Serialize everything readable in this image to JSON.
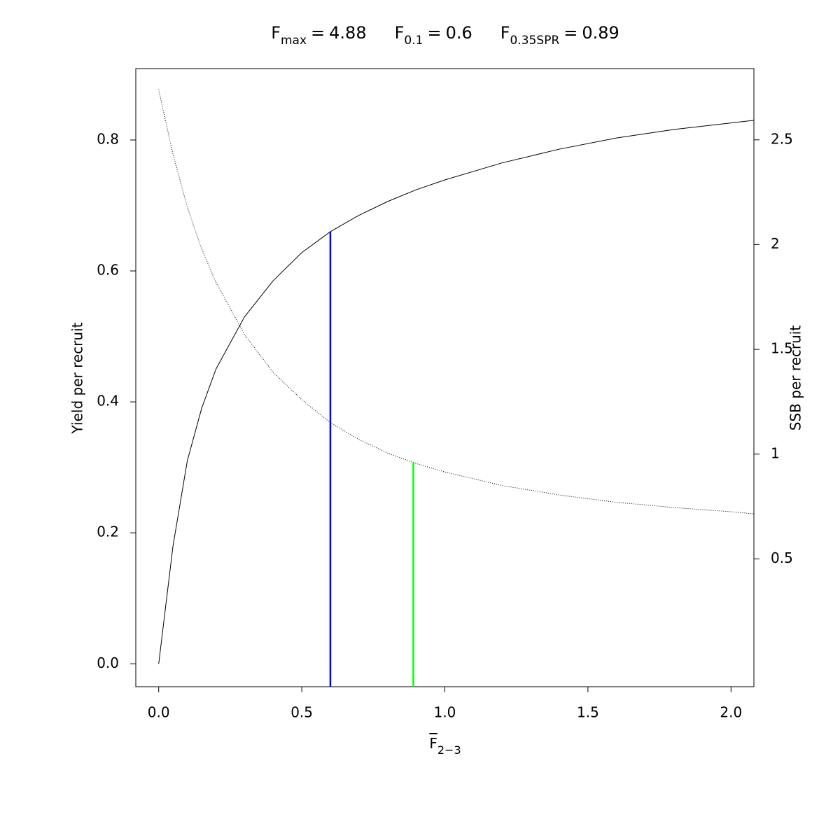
{
  "chart_data": {
    "type": "line",
    "title_parts": [
      {
        "name": "F",
        "sub": "max",
        "eq": "=",
        "value": 4.88
      },
      {
        "name": "F",
        "sub": "0.1",
        "eq": "=",
        "value": 0.6
      },
      {
        "name": "F",
        "sub": "0.35SPR",
        "eq": "=",
        "value": 0.89
      }
    ],
    "xlabel": {
      "name": "F",
      "sub": "2−3"
    },
    "ylabel": "Yield per recruit",
    "y2label": "SSB per recruit",
    "x": [
      0,
      0.05,
      0.1,
      0.15,
      0.2,
      0.3,
      0.4,
      0.5,
      0.6,
      0.7,
      0.8,
      0.9,
      1.0,
      1.2,
      1.4,
      1.6,
      1.8,
      2.0,
      2.08
    ],
    "series": [
      {
        "axis": "y",
        "color": "#000000",
        "dash": "solid",
        "values": [
          0,
          0.18,
          0.31,
          0.39,
          0.45,
          0.53,
          0.585,
          0.628,
          0.66,
          0.685,
          0.706,
          0.724,
          0.739,
          0.765,
          0.786,
          0.803,
          0.816,
          0.826,
          0.83
        ]
      },
      {
        "axis": "y2",
        "color": "#000000",
        "dash": "dotted",
        "values": [
          2.74,
          2.43,
          2.18,
          1.98,
          1.82,
          1.57,
          1.39,
          1.26,
          1.15,
          1.07,
          1.005,
          0.955,
          0.915,
          0.85,
          0.805,
          0.77,
          0.745,
          0.725,
          0.715
        ]
      }
    ],
    "reference_lines": [
      {
        "x": 0.6,
        "y": 0.66,
        "axis": "y",
        "color": "#0000ff"
      },
      {
        "x": 0.89,
        "y": 0.96,
        "axis": "y2",
        "color": "#00ff00"
      }
    ],
    "xlim": [
      -0.08,
      2.08
    ],
    "ylim": [
      -0.035,
      0.909
    ],
    "y2lim": [
      -0.11,
      2.84
    ],
    "xticks": [
      {
        "value": 0,
        "label": "0.0"
      },
      0.5,
      {
        "value": 1,
        "label": "1.0"
      },
      1.5,
      {
        "value": 2,
        "label": "2.0"
      }
    ],
    "yticks": [
      {
        "value": 0,
        "label": "0.0"
      },
      0.2,
      0.4,
      0.6,
      0.8
    ],
    "y2ticks": [
      0.5,
      1,
      1.5,
      2,
      2.5
    ],
    "grid": false
  }
}
